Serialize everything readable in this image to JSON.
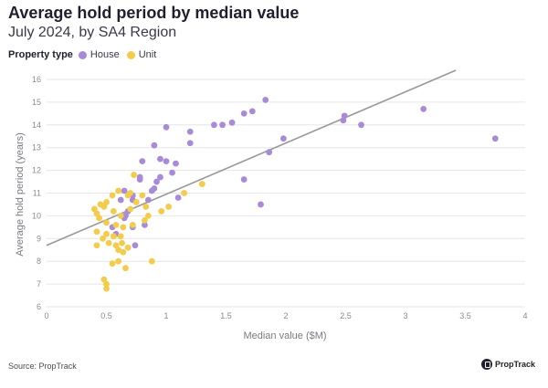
{
  "title": "Average hold period by median value",
  "subtitle": "July 2024, by SA4 Region",
  "legend": {
    "label": "Property type",
    "items": [
      {
        "name": "House",
        "color": "#a98ad6"
      },
      {
        "name": "Unit",
        "color": "#f3cc4b"
      }
    ]
  },
  "source": "Source: PropTrack",
  "brand": "PropTrack",
  "chart_data": {
    "type": "scatter",
    "title": "Average hold period by median value",
    "xlabel": "Median value ($M)",
    "ylabel": "Average hold period (years)",
    "xlim": [
      0,
      4
    ],
    "ylim": [
      6,
      16
    ],
    "xticks": [
      0,
      0.5,
      1,
      1.5,
      2,
      2.5,
      3,
      3.5,
      4
    ],
    "yticks": [
      6,
      7,
      8,
      9,
      10,
      11,
      12,
      13,
      14,
      15,
      16
    ],
    "xtick_labels": [
      "0",
      "0.5",
      "1",
      "1.5",
      "2",
      "2.5",
      "3",
      "3.5",
      "4"
    ],
    "ytick_labels": [
      "6",
      "7",
      "8",
      "9",
      "10",
      "11",
      "12",
      "13",
      "14",
      "15",
      "16"
    ],
    "grid": "horizontal",
    "trendline": {
      "x": [
        0,
        3.42
      ],
      "y": [
        8.7,
        16.4
      ],
      "color": "#999999"
    },
    "series": [
      {
        "name": "House",
        "color": "#a98ad6",
        "points": [
          [
            1.0,
            13.9
          ],
          [
            0.9,
            13.1
          ],
          [
            0.95,
            12.5
          ],
          [
            1.0,
            12.4
          ],
          [
            0.8,
            12.4
          ],
          [
            1.08,
            12.3
          ],
          [
            1.05,
            11.9
          ],
          [
            0.78,
            11.7
          ],
          [
            0.78,
            11.6
          ],
          [
            0.92,
            11.5
          ],
          [
            0.95,
            11.7
          ],
          [
            0.88,
            11.1
          ],
          [
            0.9,
            11.2
          ],
          [
            0.72,
            10.7
          ],
          [
            0.72,
            10.9
          ],
          [
            0.65,
            11.1
          ],
          [
            0.62,
            10.7
          ],
          [
            0.85,
            10.7
          ],
          [
            0.68,
            10.2
          ],
          [
            0.66,
            10.0
          ],
          [
            0.65,
            9.9
          ],
          [
            0.82,
            9.6
          ],
          [
            0.72,
            9.5
          ],
          [
            0.58,
            9.2
          ],
          [
            0.55,
            9.5
          ],
          [
            0.74,
            8.7
          ],
          [
            1.2,
            13.7
          ],
          [
            1.2,
            13.2
          ],
          [
            1.1,
            10.8
          ],
          [
            1.4,
            14.0
          ],
          [
            1.47,
            14.0
          ],
          [
            1.55,
            14.1
          ],
          [
            1.65,
            14.5
          ],
          [
            1.72,
            14.6
          ],
          [
            1.83,
            15.1
          ],
          [
            1.65,
            11.6
          ],
          [
            1.79,
            10.5
          ],
          [
            1.86,
            12.8
          ],
          [
            1.98,
            13.4
          ],
          [
            2.48,
            14.2
          ],
          [
            2.49,
            14.4
          ],
          [
            2.63,
            14.0
          ],
          [
            3.15,
            14.7
          ],
          [
            3.75,
            13.4
          ]
        ]
      },
      {
        "name": "Unit",
        "color": "#f3cc4b",
        "points": [
          [
            0.73,
            11.8
          ],
          [
            0.7,
            11.0
          ],
          [
            0.68,
            10.9
          ],
          [
            0.6,
            11.1
          ],
          [
            0.55,
            10.9
          ],
          [
            0.5,
            10.6
          ],
          [
            0.45,
            10.5
          ],
          [
            0.4,
            10.3
          ],
          [
            0.42,
            10.1
          ],
          [
            0.48,
            10.4
          ],
          [
            0.56,
            10.2
          ],
          [
            0.62,
            10.0
          ],
          [
            0.7,
            10.3
          ],
          [
            0.44,
            9.9
          ],
          [
            0.5,
            9.7
          ],
          [
            0.58,
            9.6
          ],
          [
            0.64,
            9.5
          ],
          [
            0.72,
            9.6
          ],
          [
            0.82,
            9.8
          ],
          [
            0.42,
            9.3
          ],
          [
            0.5,
            9.2
          ],
          [
            0.56,
            9.1
          ],
          [
            0.62,
            9.1
          ],
          [
            0.47,
            9.0
          ],
          [
            0.52,
            8.8
          ],
          [
            0.58,
            8.7
          ],
          [
            0.63,
            8.8
          ],
          [
            0.68,
            8.6
          ],
          [
            0.6,
            8.5
          ],
          [
            0.64,
            8.4
          ],
          [
            0.42,
            8.7
          ],
          [
            0.6,
            8.0
          ],
          [
            0.55,
            7.9
          ],
          [
            0.66,
            7.7
          ],
          [
            0.48,
            7.2
          ],
          [
            0.5,
            7.0
          ],
          [
            0.5,
            6.8
          ],
          [
            0.88,
            8.0
          ],
          [
            0.83,
            10.4
          ],
          [
            0.85,
            10.0
          ],
          [
            0.96,
            10.2
          ],
          [
            1.02,
            10.4
          ],
          [
            1.15,
            11.0
          ],
          [
            1.3,
            11.4
          ],
          [
            0.75,
            10.6
          ],
          [
            0.8,
            10.9
          ]
        ]
      }
    ]
  }
}
